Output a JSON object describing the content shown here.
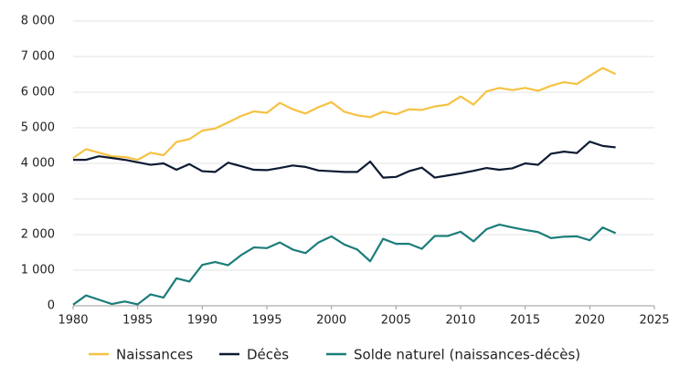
{
  "chart_data": {
    "type": "line",
    "x": [
      1980,
      1981,
      1982,
      1983,
      1984,
      1985,
      1986,
      1987,
      1988,
      1989,
      1990,
      1991,
      1992,
      1993,
      1994,
      1995,
      1996,
      1997,
      1998,
      1999,
      2000,
      2001,
      2002,
      2003,
      2004,
      2005,
      2006,
      2007,
      2008,
      2009,
      2010,
      2011,
      2012,
      2013,
      2014,
      2015,
      2016,
      2017,
      2018,
      2019,
      2020,
      2021,
      2022
    ],
    "series": [
      {
        "name": "Naissances",
        "color": "#f5c242",
        "values": [
          4150,
          4400,
          4300,
          4200,
          4180,
          4100,
          4300,
          4230,
          4600,
          4680,
          4920,
          4980,
          5150,
          5330,
          5460,
          5420,
          5700,
          5520,
          5400,
          5580,
          5720,
          5450,
          5350,
          5300,
          5450,
          5380,
          5520,
          5500,
          5600,
          5650,
          5880,
          5650,
          6020,
          6120,
          6060,
          6120,
          6040,
          6180,
          6280,
          6230,
          6460,
          6680,
          6510
        ]
      },
      {
        "name": "Décès",
        "color": "#0d1a33",
        "values": [
          4100,
          4100,
          4200,
          4150,
          4100,
          4030,
          3960,
          4000,
          3820,
          3980,
          3780,
          3760,
          4020,
          3920,
          3820,
          3810,
          3870,
          3940,
          3900,
          3800,
          3780,
          3760,
          3760,
          4050,
          3600,
          3620,
          3780,
          3880,
          3600,
          3660,
          3720,
          3790,
          3870,
          3820,
          3860,
          4000,
          3960,
          4270,
          4330,
          4290,
          4610,
          4490,
          4450
        ]
      },
      {
        "name": "Solde naturel (naissances-décès)",
        "color": "#1b7d7a",
        "values": [
          30,
          290,
          170,
          50,
          120,
          40,
          320,
          230,
          770,
          680,
          1150,
          1230,
          1140,
          1420,
          1640,
          1620,
          1780,
          1580,
          1480,
          1780,
          1950,
          1720,
          1580,
          1250,
          1880,
          1740,
          1740,
          1600,
          1960,
          1960,
          2080,
          1810,
          2150,
          2280,
          2200,
          2130,
          2070,
          1900,
          1940,
          1950,
          1840,
          2200,
          2040
        ]
      }
    ],
    "xlim": [
      1980,
      2025
    ],
    "xticks": [
      1980,
      1985,
      1990,
      1995,
      2000,
      2005,
      2010,
      2015,
      2020,
      2025
    ],
    "ylim": [
      0,
      8000
    ],
    "yticks": [
      0,
      {
        "value": 1000,
        "label": "1 000"
      },
      {
        "value": 2000,
        "label": "2 000"
      },
      {
        "value": 3000,
        "label": "3 000"
      },
      {
        "value": 4000,
        "label": "4 000"
      },
      {
        "value": 5000,
        "label": "5 000"
      },
      {
        "value": 6000,
        "label": "6 000"
      },
      {
        "value": 7000,
        "label": "7 000"
      },
      {
        "value": 8000,
        "label": "8 000"
      }
    ],
    "grid": true,
    "legend": "bottom"
  }
}
